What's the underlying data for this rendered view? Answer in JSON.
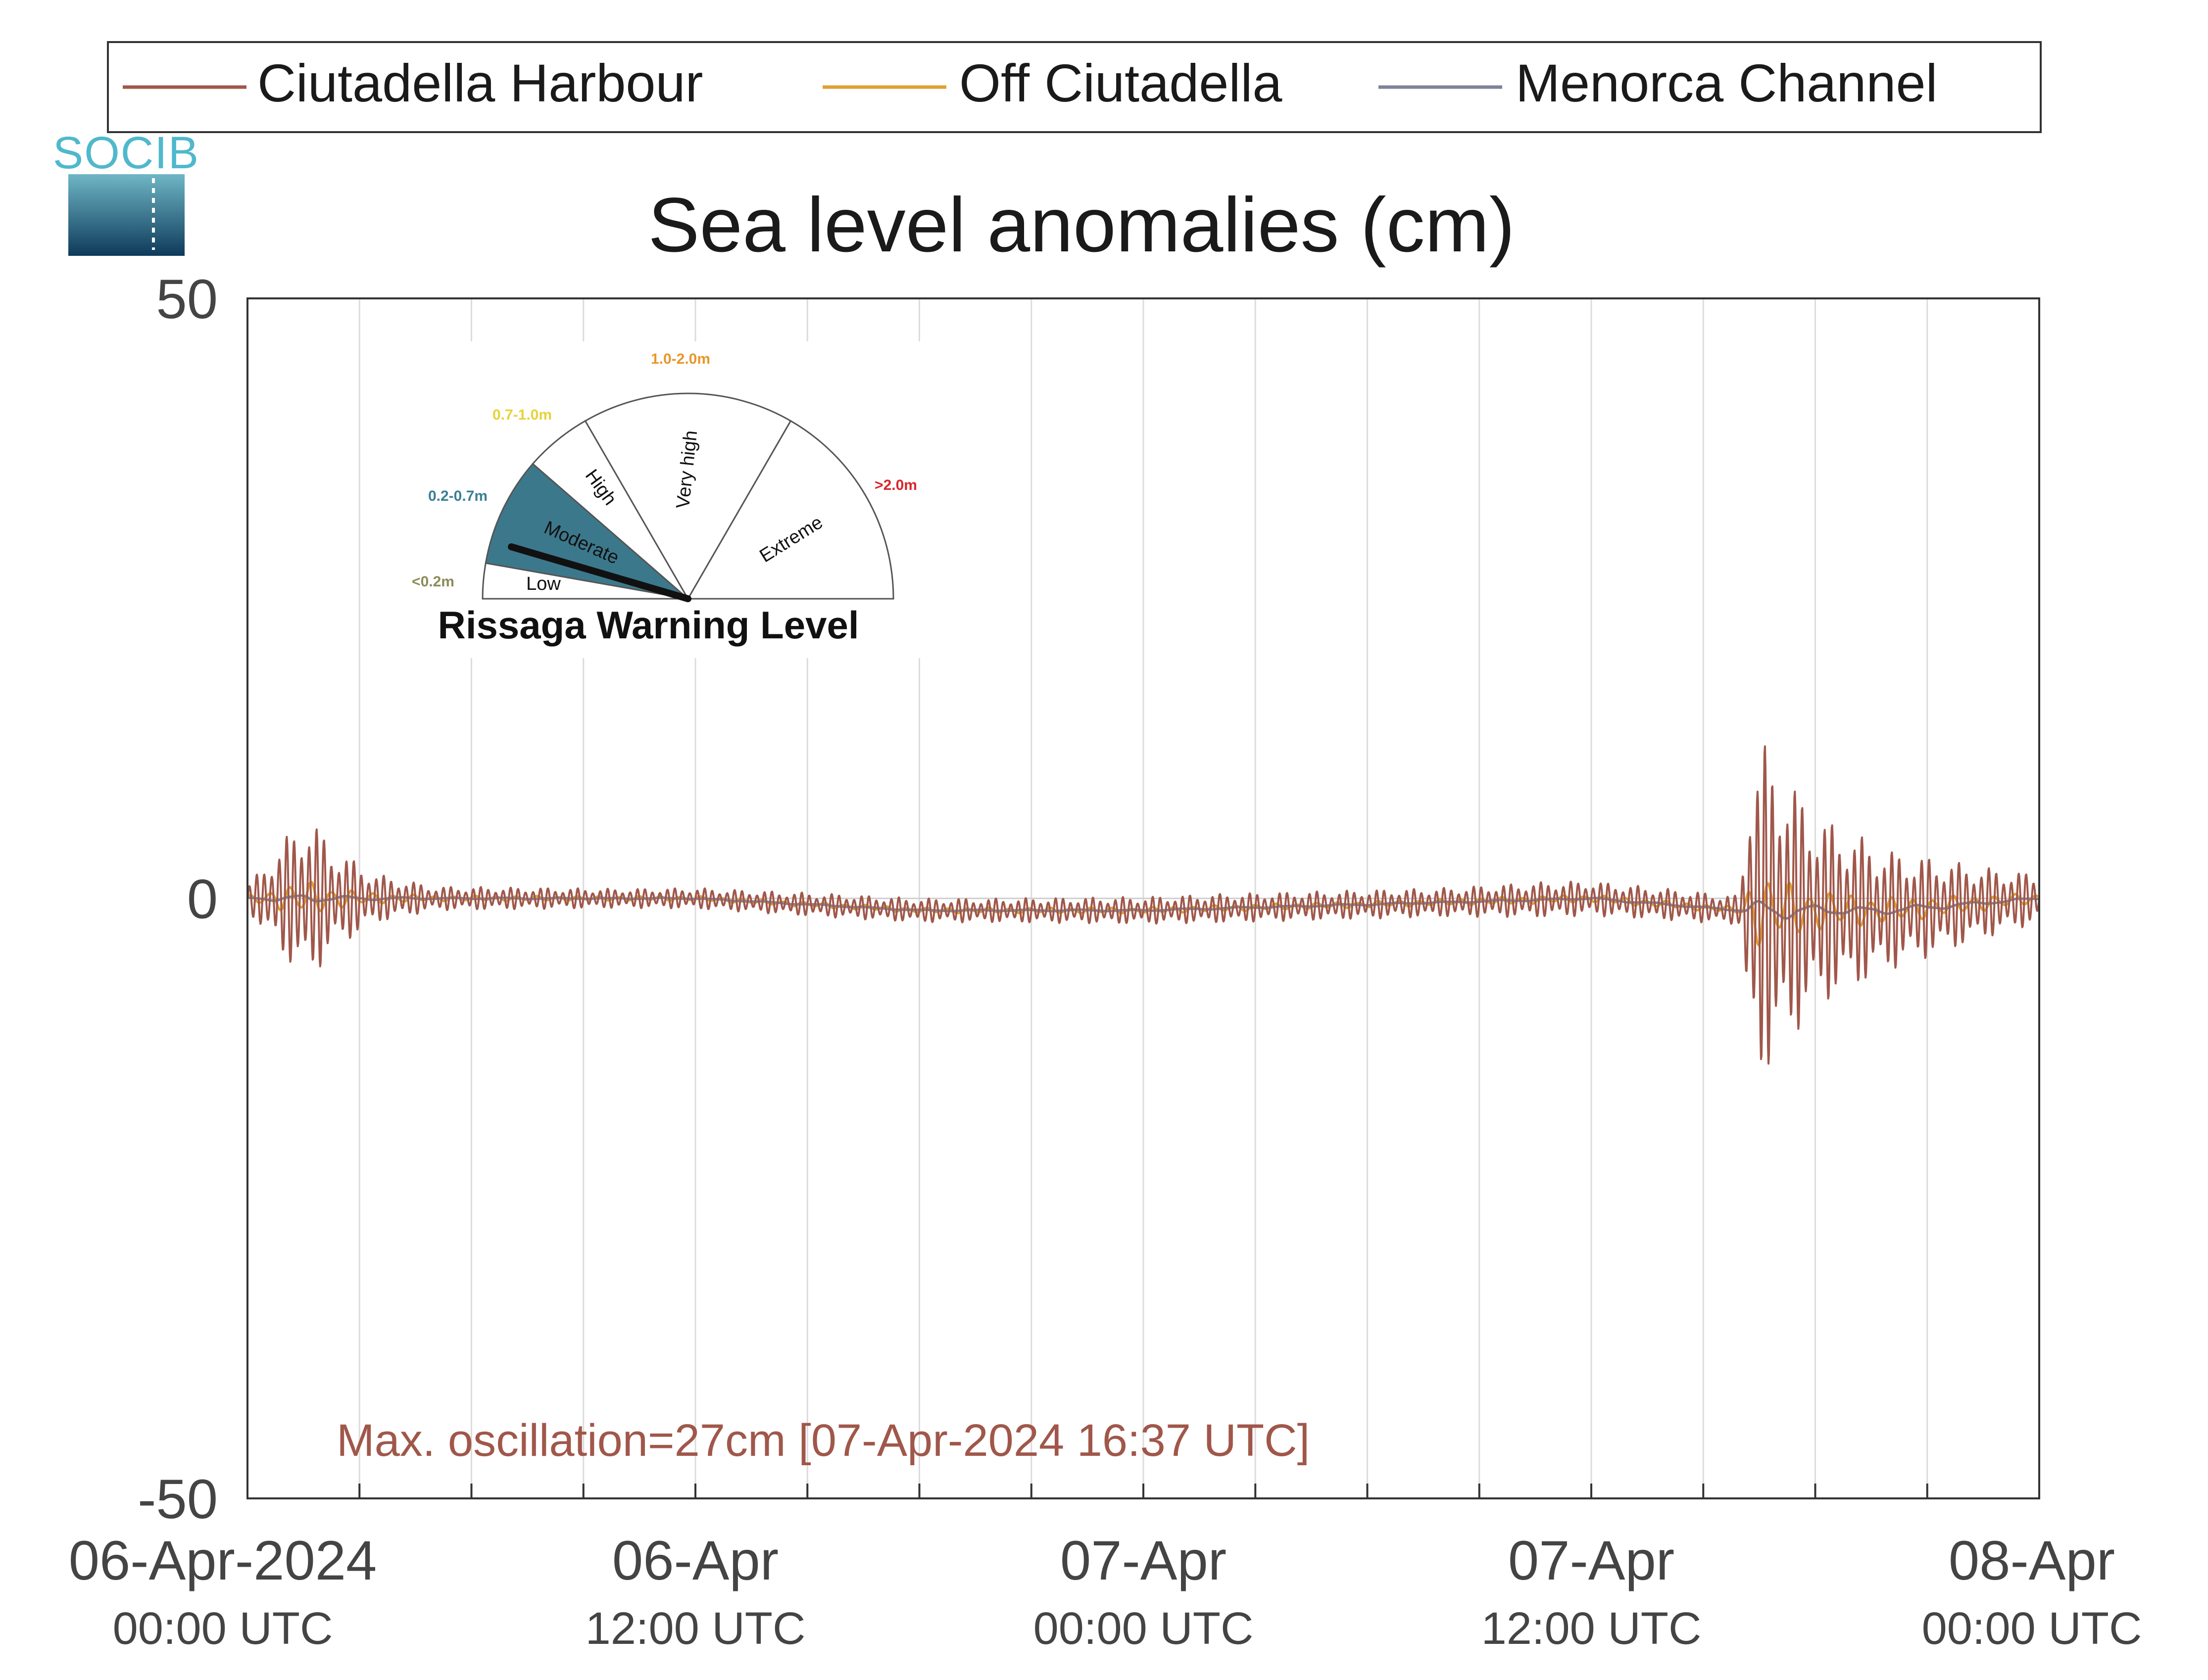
{
  "chart_data": {
    "type": "line",
    "title": "Sea level anomalies (cm)",
    "xlabel": "",
    "ylabel": "",
    "ylim": [
      -50,
      50
    ],
    "yticks": [
      "50",
      "0",
      "-50"
    ],
    "xlim_hours": [
      0,
      48
    ],
    "xticks": [
      {
        "date": "06-Apr-2024",
        "time": "00:00 UTC"
      },
      {
        "date": "06-Apr",
        "time": "12:00 UTC"
      },
      {
        "date": "07-Apr",
        "time": "00:00 UTC"
      },
      {
        "date": "07-Apr",
        "time": "12:00 UTC"
      },
      {
        "date": "08-Apr",
        "time": "00:00 UTC"
      }
    ],
    "grid": "vertical lines every 3 hours",
    "legend_position": "top",
    "series": [
      {
        "name": "Ciutadella Harbour",
        "color": "#A0574A"
      },
      {
        "name": "Off Ciutadella",
        "color": "#E0A030"
      },
      {
        "name": "Menorca Channel",
        "color": "#7F8399"
      }
    ],
    "envelope_cm": {
      "description_points": [
        [
          0,
          1
        ],
        [
          1.0,
          5
        ],
        [
          1.6,
          7
        ],
        [
          2.4,
          4
        ],
        [
          3.5,
          2
        ],
        [
          5,
          1
        ],
        [
          10,
          0.8
        ],
        [
          16,
          1
        ],
        [
          20,
          1
        ],
        [
          26,
          1.2
        ],
        [
          32,
          1.2
        ],
        [
          35,
          1.5
        ],
        [
          40,
          1.2
        ],
        [
          40.2,
          12
        ],
        [
          40.6,
          14
        ],
        [
          42,
          8
        ],
        [
          44,
          5
        ],
        [
          46.5,
          3
        ],
        [
          48,
          2
        ]
      ],
      "offsets_cm": [
        [
          0,
          0
        ],
        [
          6,
          0
        ],
        [
          12,
          0
        ],
        [
          18,
          -1
        ],
        [
          21,
          -1
        ],
        [
          24,
          -1
        ],
        [
          30,
          -0.5
        ],
        [
          36,
          0
        ],
        [
          40,
          -1
        ],
        [
          44,
          -1
        ],
        [
          48,
          0
        ]
      ]
    },
    "max_oscillation_annotation": "Max. oscillation=27cm [07-Apr-2024 16:37 UTC]"
  },
  "logo": {
    "text": "SOCIB"
  },
  "warning_gauge": {
    "title": "Rissaga Warning Level",
    "current_level": "Moderate",
    "levels": [
      {
        "name": "Low",
        "range": "<0.2m",
        "color": "#8C8C5A"
      },
      {
        "name": "Moderate",
        "range": "0.2-0.7m",
        "color": "#3A7F95"
      },
      {
        "name": "High",
        "range": "0.7-1.0m",
        "color": "#E8D23A"
      },
      {
        "name": "Very high",
        "range": "1.0-2.0m",
        "color": "#E8962A"
      },
      {
        "name": "Extreme",
        "range": ">2.0m",
        "color": "#D8262A"
      }
    ],
    "active_fill": "#3C788C"
  }
}
